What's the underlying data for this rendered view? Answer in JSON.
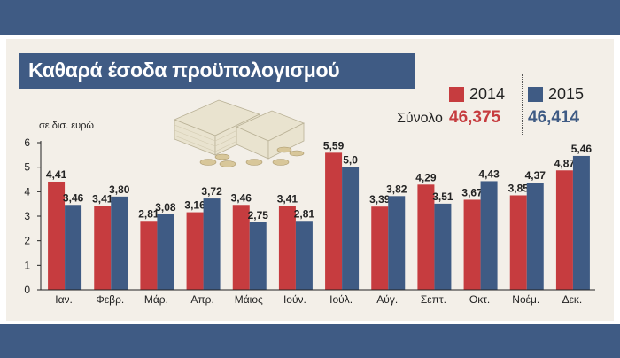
{
  "title": "Καθαρά έσοδα προϋπολογισμού",
  "legend": [
    {
      "name": "2014",
      "color": "#c63c3f"
    },
    {
      "name": "2015",
      "color": "#3f5b84"
    }
  ],
  "total": {
    "label": "Σύνολο",
    "value_2014": "46,375",
    "value_2015": "46,414"
  },
  "icons": {
    "illustration": "money-stack-icon"
  },
  "chart_data": {
    "type": "bar",
    "ylabel": "σε δισ. ευρώ",
    "ylim": [
      0,
      6
    ],
    "yticks": [
      "0",
      "1",
      "2",
      "3",
      "4",
      "5",
      "6"
    ],
    "categories": [
      "Ιαν.",
      "Φεβρ.",
      "Μάρ.",
      "Απρ.",
      "Μάιος",
      "Ιούν.",
      "Ιούλ.",
      "Αύγ.",
      "Σεπτ.",
      "Οκτ.",
      "Νοέμ.",
      "Δεκ."
    ],
    "series": [
      {
        "name": "2014",
        "color": "#c63c3f",
        "values": [
          4.41,
          3.41,
          2.81,
          3.16,
          3.46,
          3.41,
          5.59,
          3.39,
          4.29,
          3.67,
          3.85,
          4.87
        ],
        "labels": [
          "4,41",
          "3,41",
          "2,81",
          "3,16",
          "3,46",
          "3,41",
          "5,59",
          "3,39",
          "4,29",
          "3,67",
          "3,85",
          "4,87"
        ]
      },
      {
        "name": "2015",
        "color": "#3f5b84",
        "values": [
          3.46,
          3.8,
          3.08,
          3.72,
          2.75,
          2.81,
          5.0,
          3.82,
          3.51,
          4.43,
          4.37,
          5.46
        ],
        "labels": [
          "3,46",
          "3,80",
          "3,08",
          "3,72",
          "2,75",
          "2,81",
          "5,0",
          "3,82",
          "3,51",
          "4,43",
          "4,37",
          "5,46"
        ]
      }
    ]
  }
}
